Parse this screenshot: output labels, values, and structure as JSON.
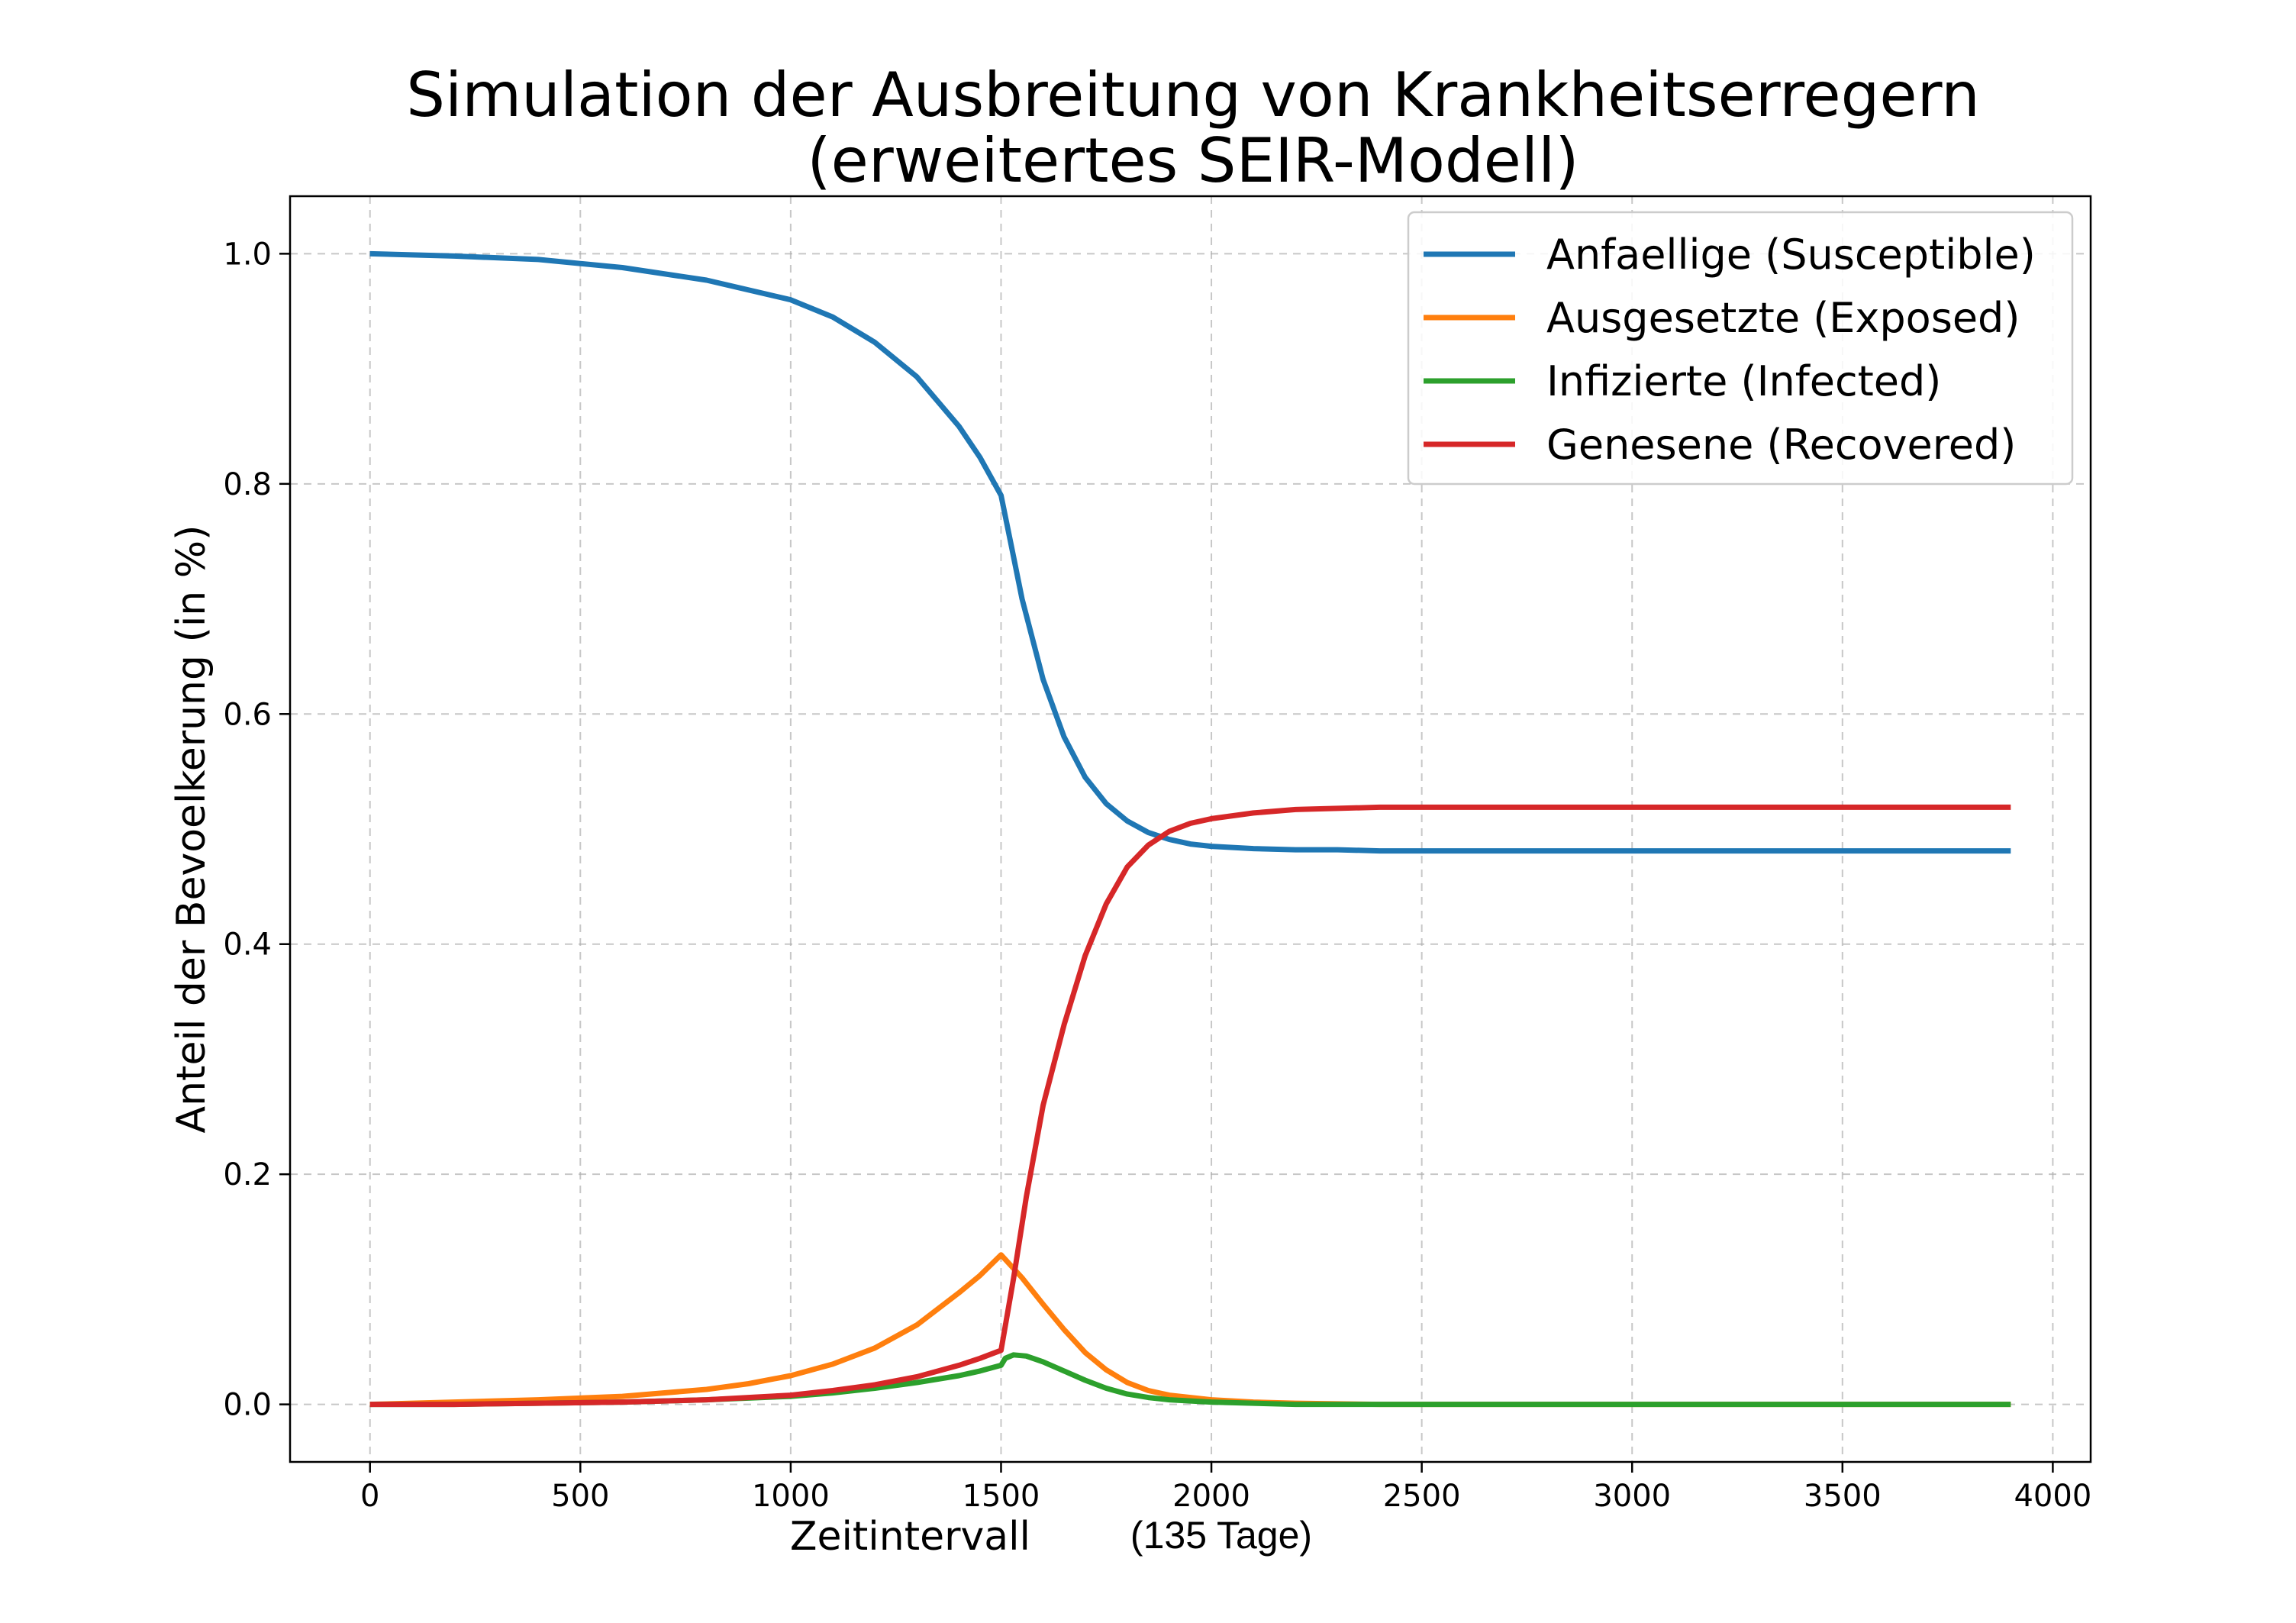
{
  "chart_data": {
    "type": "line",
    "title_lines": [
      "Simulation der Ausbreitung von Krankheitserregern",
      "(erweitertes SEIR-Modell)"
    ],
    "xlabel": "Zeitintervall",
    "xlabel_note": "(135 Tage)",
    "ylabel": "Anteil der Bevoelkerung (in %)",
    "xlim": [
      -190,
      4090
    ],
    "ylim": [
      -0.05,
      1.05
    ],
    "xticks": [
      0,
      500,
      1000,
      1500,
      2000,
      2500,
      3000,
      3500,
      4000
    ],
    "xtick_labels": [
      "0",
      "500",
      "1000",
      "1500",
      "2000",
      "2500",
      "3000",
      "3500",
      "4000"
    ],
    "yticks": [
      0.0,
      0.2,
      0.4,
      0.6,
      0.8,
      1.0
    ],
    "ytick_labels": [
      "0.0",
      "0.2",
      "0.4",
      "0.6",
      "0.8",
      "1.0"
    ],
    "grid": true,
    "legend_position": "top-right",
    "series": [
      {
        "name": "Anfaellige (Susceptible)",
        "color": "#1f77b4",
        "x": [
          0,
          200,
          400,
          600,
          800,
          1000,
          1100,
          1200,
          1300,
          1400,
          1450,
          1500,
          1525,
          1550,
          1600,
          1650,
          1700,
          1750,
          1800,
          1850,
          1900,
          1950,
          2000,
          2100,
          2200,
          2300,
          2400,
          2600,
          3000,
          3500,
          3900
        ],
        "y": [
          1.0,
          0.998,
          0.995,
          0.988,
          0.977,
          0.96,
          0.945,
          0.923,
          0.893,
          0.85,
          0.823,
          0.79,
          0.745,
          0.7,
          0.63,
          0.58,
          0.545,
          0.522,
          0.507,
          0.497,
          0.491,
          0.487,
          0.485,
          0.483,
          0.482,
          0.482,
          0.481,
          0.481,
          0.481,
          0.481,
          0.481
        ]
      },
      {
        "name": "Ausgesetzte (Exposed)",
        "color": "#ff7f0e",
        "x": [
          0,
          200,
          400,
          600,
          800,
          900,
          1000,
          1100,
          1200,
          1300,
          1400,
          1450,
          1500,
          1550,
          1600,
          1650,
          1700,
          1750,
          1800,
          1850,
          1900,
          2000,
          2100,
          2200,
          2400,
          2600,
          3000,
          3500,
          3900
        ],
        "y": [
          0.0,
          0.002,
          0.004,
          0.007,
          0.013,
          0.018,
          0.025,
          0.035,
          0.049,
          0.069,
          0.097,
          0.112,
          0.13,
          0.11,
          0.087,
          0.065,
          0.045,
          0.03,
          0.019,
          0.012,
          0.008,
          0.004,
          0.002,
          0.001,
          0.0,
          0.0,
          0.0,
          0.0,
          0.0
        ]
      },
      {
        "name": "Infizierte (Infected)",
        "color": "#2ca02c",
        "x": [
          0,
          200,
          400,
          600,
          800,
          1000,
          1100,
          1200,
          1300,
          1400,
          1450,
          1500,
          1510,
          1530,
          1560,
          1600,
          1650,
          1700,
          1750,
          1800,
          1850,
          1900,
          2000,
          2100,
          2200,
          2400,
          2600,
          3000,
          3500,
          3900
        ],
        "y": [
          0.0,
          0.0,
          0.001,
          0.002,
          0.004,
          0.007,
          0.01,
          0.014,
          0.019,
          0.025,
          0.029,
          0.034,
          0.04,
          0.043,
          0.042,
          0.037,
          0.029,
          0.021,
          0.014,
          0.009,
          0.006,
          0.004,
          0.002,
          0.001,
          0.0,
          0.0,
          0.0,
          0.0,
          0.0,
          0.0
        ]
      },
      {
        "name": "Genesene (Recovered)",
        "color": "#d62728",
        "x": [
          0,
          200,
          400,
          600,
          800,
          1000,
          1100,
          1200,
          1300,
          1400,
          1450,
          1500,
          1530,
          1560,
          1600,
          1650,
          1700,
          1750,
          1800,
          1850,
          1900,
          1950,
          2000,
          2100,
          2200,
          2300,
          2400,
          2600,
          3000,
          3500,
          3900
        ],
        "y": [
          0.0,
          0.0,
          0.001,
          0.002,
          0.004,
          0.008,
          0.012,
          0.017,
          0.024,
          0.034,
          0.04,
          0.047,
          0.11,
          0.18,
          0.26,
          0.33,
          0.39,
          0.435,
          0.467,
          0.486,
          0.498,
          0.505,
          0.509,
          0.514,
          0.517,
          0.518,
          0.519,
          0.519,
          0.519,
          0.519,
          0.519
        ]
      }
    ]
  }
}
